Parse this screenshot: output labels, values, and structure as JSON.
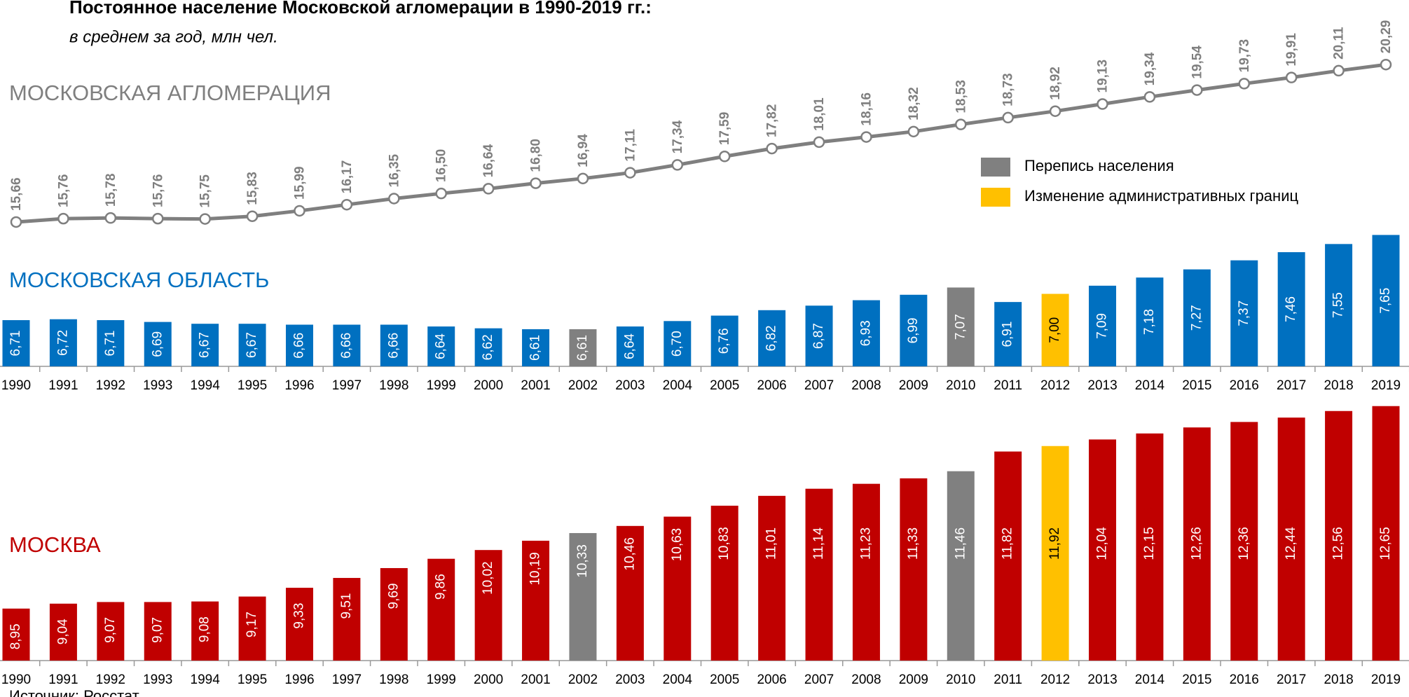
{
  "title": "Постоянное население Московской агломерации в 1990-2019 гг.:",
  "subtitle": "в среднем за год, млн чел.",
  "legend": [
    {
      "name": "Перепись населения",
      "color": "#808080"
    },
    {
      "name": "Изменение административных границ",
      "color": "#ffc000"
    }
  ],
  "source": "Источник: Росстат",
  "chart_data": [
    {
      "type": "line",
      "title": "МОСКОВСКАЯ АГЛОМЕРАЦИЯ",
      "color": "#7f7f7f",
      "ylim": [
        15,
        20.5
      ],
      "values": [
        15.66,
        15.76,
        15.78,
        15.76,
        15.75,
        15.83,
        15.99,
        16.17,
        16.35,
        16.5,
        16.64,
        16.8,
        16.94,
        17.11,
        17.34,
        17.59,
        17.82,
        18.01,
        18.16,
        18.32,
        18.53,
        18.73,
        18.92,
        19.13,
        19.34,
        19.54,
        19.73,
        19.91,
        20.11,
        20.29
      ],
      "value_labels": [
        "15,66",
        "15,76",
        "15,78",
        "15,76",
        "15,75",
        "15,83",
        "15,99",
        "16,17",
        "16,35",
        "16,50",
        "16,64",
        "16,80",
        "16,94",
        "17,11",
        "17,34",
        "17,59",
        "17,82",
        "18,01",
        "18,16",
        "18,32",
        "18,53",
        "18,73",
        "18,92",
        "19,13",
        "19,34",
        "19,54",
        "19,73",
        "19,91",
        "20,11",
        "20,29"
      ]
    },
    {
      "type": "bar",
      "title": "МОСКОВСКАЯ ОБЛАСТЬ",
      "color": "#0070c0",
      "ylim": [
        6.2,
        7.8
      ],
      "categories": [
        "1990",
        "1991",
        "1992",
        "1993",
        "1994",
        "1995",
        "1996",
        "1997",
        "1998",
        "1999",
        "2000",
        "2001",
        "2002",
        "2003",
        "2004",
        "2005",
        "2006",
        "2007",
        "2008",
        "2009",
        "2010",
        "2011",
        "2012",
        "2013",
        "2014",
        "2015",
        "2016",
        "2017",
        "2018",
        "2019"
      ],
      "values": [
        6.71,
        6.72,
        6.71,
        6.69,
        6.67,
        6.67,
        6.66,
        6.66,
        6.66,
        6.64,
        6.62,
        6.61,
        6.61,
        6.64,
        6.7,
        6.76,
        6.82,
        6.87,
        6.93,
        6.99,
        7.07,
        6.91,
        7.0,
        7.09,
        7.18,
        7.27,
        7.37,
        7.46,
        7.55,
        7.65
      ],
      "value_labels": [
        "6,71",
        "6,72",
        "6,71",
        "6,69",
        "6,67",
        "6,67",
        "6,66",
        "6,66",
        "6,66",
        "6,64",
        "6,62",
        "6,61",
        "6,61",
        "6,64",
        "6,70",
        "6,76",
        "6,82",
        "6,87",
        "6,93",
        "6,99",
        "7,07",
        "6,91",
        "7,00",
        "7,09",
        "7,18",
        "7,27",
        "7,37",
        "7,46",
        "7,55",
        "7,65"
      ],
      "colors": [
        "#0070c0",
        "#0070c0",
        "#0070c0",
        "#0070c0",
        "#0070c0",
        "#0070c0",
        "#0070c0",
        "#0070c0",
        "#0070c0",
        "#0070c0",
        "#0070c0",
        "#0070c0",
        "#808080",
        "#0070c0",
        "#0070c0",
        "#0070c0",
        "#0070c0",
        "#0070c0",
        "#0070c0",
        "#0070c0",
        "#808080",
        "#0070c0",
        "#ffc000",
        "#0070c0",
        "#0070c0",
        "#0070c0",
        "#0070c0",
        "#0070c0",
        "#0070c0",
        "#0070c0"
      ]
    },
    {
      "type": "bar",
      "title": "МОСКВА",
      "color": "#c00000",
      "ylim": [
        8,
        12.8
      ],
      "categories": [
        "1990",
        "1991",
        "1992",
        "1993",
        "1994",
        "1995",
        "1996",
        "1997",
        "1998",
        "1999",
        "2000",
        "2001",
        "2002",
        "2003",
        "2004",
        "2005",
        "2006",
        "2007",
        "2008",
        "2009",
        "2010",
        "2011",
        "2012",
        "2013",
        "2014",
        "2015",
        "2016",
        "2017",
        "2018",
        "2019"
      ],
      "values": [
        8.95,
        9.04,
        9.07,
        9.07,
        9.08,
        9.17,
        9.33,
        9.51,
        9.69,
        9.86,
        10.02,
        10.19,
        10.33,
        10.46,
        10.63,
        10.83,
        11.01,
        11.14,
        11.23,
        11.33,
        11.46,
        11.82,
        11.92,
        12.04,
        12.15,
        12.26,
        12.36,
        12.44,
        12.56,
        12.65
      ],
      "value_labels": [
        "8,95",
        "9,04",
        "9,07",
        "9,07",
        "9,08",
        "9,17",
        "9,33",
        "9,51",
        "9,69",
        "9,86",
        "10,02",
        "10,19",
        "10,33",
        "10,46",
        "10,63",
        "10,83",
        "11,01",
        "11,14",
        "11,23",
        "11,33",
        "11,46",
        "11,82",
        "11,92",
        "12,04",
        "12,15",
        "12,26",
        "12,36",
        "12,44",
        "12,56",
        "12,65"
      ],
      "colors": [
        "#c00000",
        "#c00000",
        "#c00000",
        "#c00000",
        "#c00000",
        "#c00000",
        "#c00000",
        "#c00000",
        "#c00000",
        "#c00000",
        "#c00000",
        "#c00000",
        "#808080",
        "#c00000",
        "#c00000",
        "#c00000",
        "#c00000",
        "#c00000",
        "#c00000",
        "#c00000",
        "#808080",
        "#c00000",
        "#ffc000",
        "#c00000",
        "#c00000",
        "#c00000",
        "#c00000",
        "#c00000",
        "#c00000",
        "#c00000"
      ]
    }
  ]
}
